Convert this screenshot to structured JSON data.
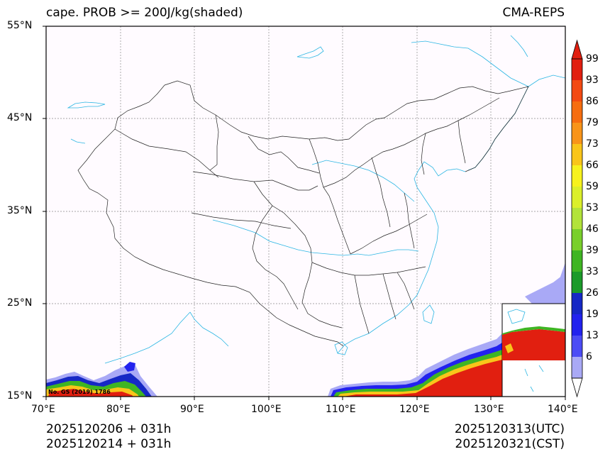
{
  "header": {
    "title_left": "cape. PROB >= 200J/kg(shaded)",
    "title_right": "CMA-REPS"
  },
  "axes": {
    "lat_labels": [
      "55°N",
      "45°N",
      "35°N",
      "25°N",
      "15°N"
    ],
    "lon_labels": [
      "70°E",
      "80°E",
      "90°E",
      "100°E",
      "110°E",
      "120°E",
      "130°E",
      "140°E"
    ],
    "lat_values": [
      55,
      45,
      35,
      25,
      15
    ],
    "lon_values": [
      70,
      80,
      90,
      100,
      110,
      120,
      130,
      140
    ]
  },
  "map_note": "No. GS (2019) 1786",
  "footer": {
    "init_utc": "2025120206  +  031h",
    "init_cst": "2025120214  +  031h",
    "valid_utc": "2025120313(UTC)",
    "valid_cst": "2025120321(CST)"
  },
  "colorbar": {
    "labels": [
      "99",
      "93",
      "86",
      "79",
      "73",
      "66",
      "59",
      "53",
      "46",
      "39",
      "33",
      "26",
      "19",
      "13",
      "6"
    ],
    "colors": [
      "#e11f10",
      "#f34a12",
      "#f66d10",
      "#f8941a",
      "#f9c51a",
      "#f7f21d",
      "#dbef2a",
      "#b2e33a",
      "#79cf2b",
      "#3fb523",
      "#1b9a2a",
      "#1628c5",
      "#2222ee",
      "#4c4cf5",
      "#a9a9f6"
    ],
    "over_color": "#e11f10",
    "under_color": "#ffffff"
  },
  "colors": {
    "background": "#fffbff",
    "coast": "#2bb6e3",
    "border": "#000000",
    "grid": "#808080"
  }
}
